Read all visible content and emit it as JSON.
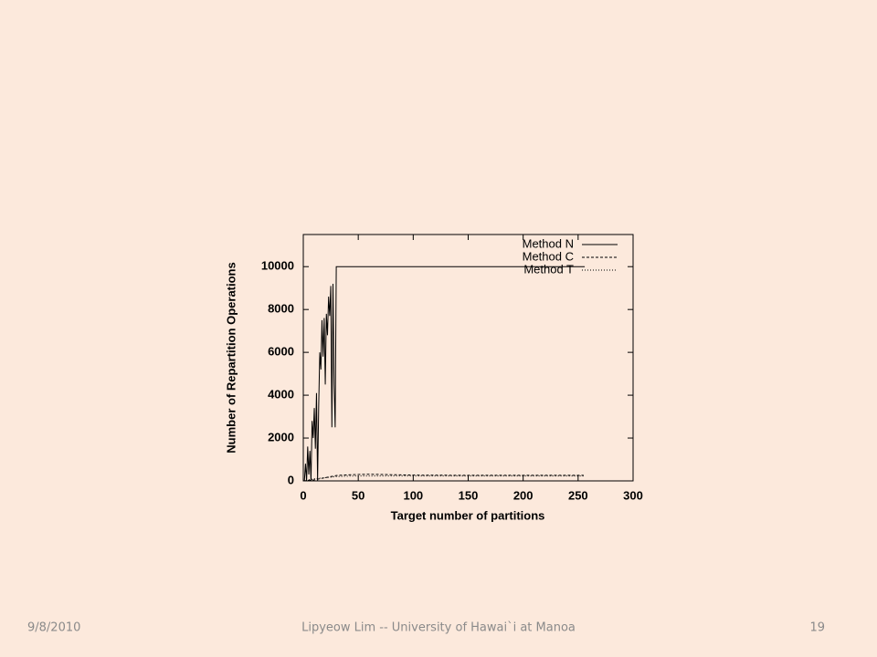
{
  "chart_data": {
    "type": "line",
    "xlabel": "Target number of partitions",
    "ylabel": "Number of Repartition Operations",
    "xlim": [
      0,
      300
    ],
    "ylim": [
      0,
      11500
    ],
    "xticks": [
      0,
      50,
      100,
      150,
      200,
      250,
      300
    ],
    "yticks": [
      0,
      2000,
      4000,
      6000,
      8000,
      10000
    ],
    "grid": false,
    "legend": "top-right",
    "series": [
      {
        "name": "Method N",
        "color": "#000000",
        "dash": "none",
        "x": [
          0,
          1,
          2,
          3,
          4,
          5,
          6,
          7,
          8,
          9,
          10,
          11,
          12,
          13,
          14,
          15,
          16,
          17,
          18,
          19,
          20,
          21,
          22,
          23,
          24,
          25,
          26,
          27,
          28,
          29,
          30,
          31,
          256
        ],
        "values": [
          0,
          0,
          800,
          0,
          1600,
          300,
          1400,
          0,
          2800,
          2000,
          3400,
          1500,
          4100,
          0,
          3500,
          6000,
          5200,
          7500,
          5800,
          7600,
          4500,
          7800,
          6800,
          8600,
          7700,
          9100,
          2500,
          9200,
          4500,
          2500,
          10000,
          10000,
          10000
        ]
      },
      {
        "name": "Method C",
        "color": "#000000",
        "dash": "3,2",
        "x": [
          0,
          10,
          20,
          30,
          40,
          50,
          60,
          70,
          80,
          90,
          100,
          150,
          200,
          255
        ],
        "values": [
          0,
          50,
          150,
          250,
          280,
          300,
          310,
          300,
          290,
          280,
          270,
          260,
          260,
          260
        ]
      },
      {
        "name": "Method T",
        "color": "#000000",
        "dash": "1,2",
        "x": [
          0,
          10,
          20,
          30,
          40,
          50,
          100,
          150,
          200,
          255
        ],
        "values": [
          0,
          100,
          150,
          200,
          220,
          230,
          230,
          230,
          230,
          230
        ]
      }
    ]
  },
  "footer": {
    "date": "9/8/2010",
    "author": "Lipyeow Lim -- University of Hawai`i at Manoa",
    "page": "19"
  }
}
